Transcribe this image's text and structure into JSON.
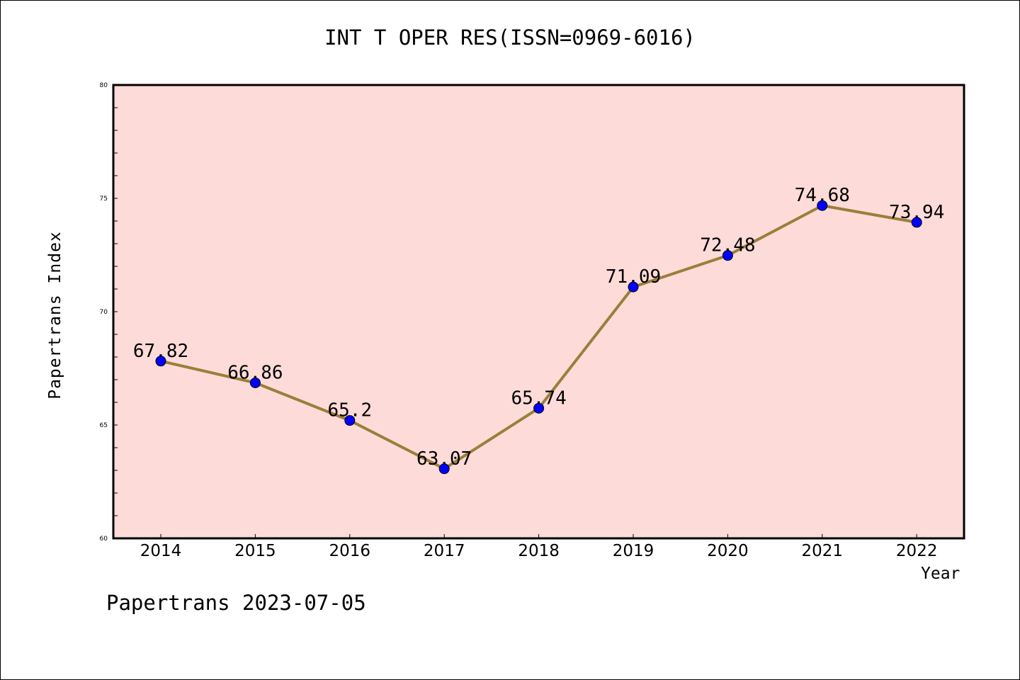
{
  "chart_data": {
    "type": "line",
    "title": "INT T OPER RES(ISSN=0969-6016)",
    "xlabel": "Year",
    "ylabel": "Papertrans Index",
    "categories": [
      "2014",
      "2015",
      "2016",
      "2017",
      "2018",
      "2019",
      "2020",
      "2021",
      "2022"
    ],
    "series": [
      {
        "values": [
          67.82,
          66.86,
          65.2,
          63.07,
          65.74,
          71.09,
          72.48,
          74.68,
          73.94
        ],
        "labels": [
          "67.82",
          "66.86",
          "65.2",
          "63.07",
          "65.74",
          "71.09",
          "72.48",
          "74.68",
          "73.94"
        ],
        "line_color": "#9a7f3a",
        "marker_color": "#0000ff"
      }
    ],
    "ylim": [
      60,
      80
    ],
    "yticks": [
      60,
      65,
      70,
      75,
      80
    ],
    "plot_background": "#fddbd9",
    "grid": false,
    "legend": "none"
  },
  "footer": "Papertrans 2023-07-05"
}
